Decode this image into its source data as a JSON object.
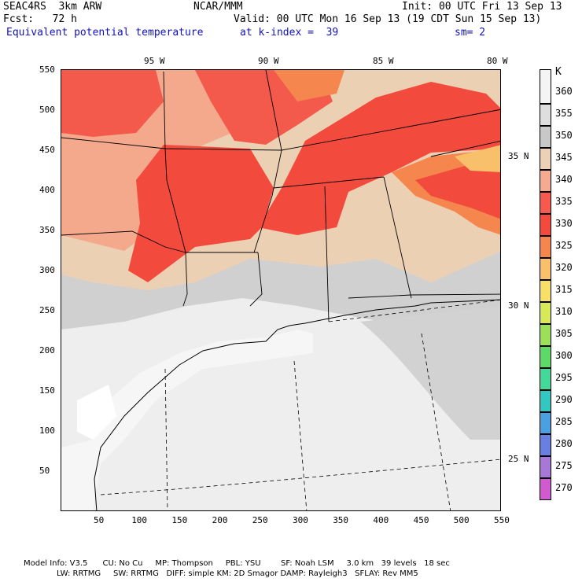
{
  "header": {
    "model": "SEAC4RS  3km ARW",
    "org": "NCAR/MMM",
    "init": "Init: 00 UTC Fri 13 Sep 13",
    "fcst": "Fcst:   72 h",
    "valid": "Valid: 00 UTC Mon 16 Sep 13 (19 CDT Sun 15 Sep 13)",
    "field": "Equivalent potential temperature",
    "level": "at k-index =  39",
    "smooth": "sm= 2"
  },
  "map": {
    "lon_labels": [
      "95 W",
      "90 W",
      "85 W",
      "80 W"
    ],
    "lat_labels": [
      "35 N",
      "30 N",
      "25 N"
    ],
    "x_ticks": [
      "50",
      "100",
      "150",
      "200",
      "250",
      "300",
      "350",
      "400",
      "450",
      "500",
      "550"
    ],
    "y_ticks": [
      "550",
      "500",
      "450",
      "400",
      "350",
      "300",
      "250",
      "200",
      "150",
      "100",
      "50"
    ]
  },
  "legend": {
    "unit": "K",
    "levels": [
      "360",
      "355",
      "350",
      "345",
      "340",
      "335",
      "330",
      "325",
      "320",
      "315",
      "310",
      "305",
      "300",
      "295",
      "290",
      "285",
      "280",
      "275",
      "270"
    ],
    "colors": [
      "#f4f4f4",
      "#dedede",
      "#c8c8c8",
      "#ecd1b6",
      "#f6ab90",
      "#f65a4e",
      "#f24a3c",
      "#f5864e",
      "#f8c06a",
      "#f8e068",
      "#d8e858",
      "#9ce05a",
      "#5ed866",
      "#44d89a",
      "#30c8c0",
      "#4aa0e0",
      "#6a80e0",
      "#a878d8",
      "#d05ad0"
    ]
  },
  "footer": {
    "line1": "Model Info: V3.5      CU: No Cu     MP: Thompson     PBL: YSU        SF: Noah LSM     3.0 km   39 levels   18 sec",
    "line2": "LW: RRTMG     SW: RRTMG   DIFF: simple KM: 2D Smagor DAMP: Rayleigh3   SFLAY: Rev MM5"
  }
}
